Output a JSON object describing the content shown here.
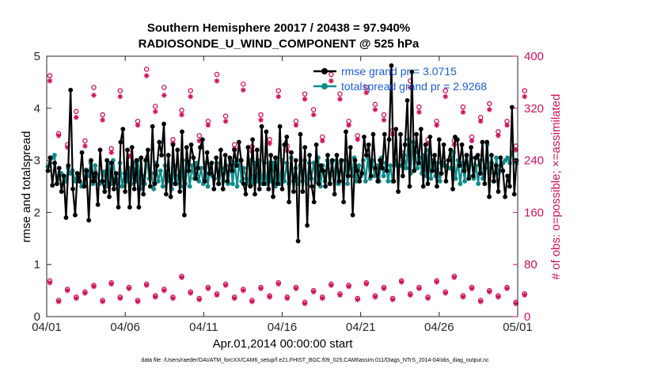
{
  "chart_data": {
    "type": "line",
    "title": "Southern Hemisphere 20017 / 20438 = 97.940%",
    "subtitle": "RADIOSONDE_U_WIND_COMPONENT @ 525 hPa",
    "xlabel": "Apr.01,2014 00:00:00 start",
    "ylabel": "rmse and totalspread",
    "ylabel_right": "# of obs: o=possible; ×=assimilated",
    "footnote": "data file: /Users/raeder/DAI/ATM_forcXX/CAM6_setup/f.e21.FHIST_BGC.f09_025.CAM6assim.011/Diags_NTrS_2014-04/obs_diag_output.nc",
    "xlim": [
      0,
      30
    ],
    "ylim": [
      0,
      5
    ],
    "ylim_right": [
      0,
      400
    ],
    "x_ticks": [
      0,
      5,
      10,
      15,
      20,
      25,
      30
    ],
    "x_tick_labels": [
      "04/01",
      "04/06",
      "04/11",
      "04/16",
      "04/21",
      "04/26",
      "05/01"
    ],
    "y_ticks": [
      "0",
      "1",
      "2",
      "3",
      "4",
      "5"
    ],
    "y_ticks_right": [
      "0",
      "80",
      "160",
      "240",
      "320",
      "400"
    ],
    "legend": [
      {
        "label": "rmse grand pr = 3.0715",
        "color": "#000000"
      },
      {
        "label": "totalspread grand pr = 2.9268",
        "color": "#0f8a8a"
      }
    ],
    "series": [
      {
        "name": "rmse",
        "color": "#000000",
        "values": [
          2.8,
          3.05,
          2.52,
          2.95,
          2.55,
          2.85,
          2.4,
          2.7,
          1.9,
          2.9,
          4.35,
          2.45,
          1.95,
          2.75,
          2.6,
          3.15,
          2.5,
          2.8,
          1.85,
          3.0,
          2.6,
          2.75,
          2.15,
          3.2,
          2.6,
          2.4,
          3.0,
          2.3,
          2.95,
          2.45,
          2.75,
          2.1,
          3.35,
          3.6,
          2.4,
          3.2,
          2.1,
          3.25,
          2.45,
          3.0,
          2.1,
          3.05,
          2.35,
          3.0,
          3.2,
          2.5,
          3.65,
          2.55,
          2.9,
          3.35,
          3.1,
          3.7,
          2.35,
          3.1,
          2.3,
          3.3,
          2.55,
          3.2,
          2.4,
          3.55,
          1.95,
          3.25,
          2.8,
          3.3,
          3.05,
          2.65,
          2.85,
          3.25,
          3.4,
          2.6,
          3.15,
          2.75,
          2.95,
          2.45,
          3.05,
          2.55,
          3.2,
          2.45,
          3.1,
          2.6,
          3.05,
          2.8,
          3.2,
          2.9,
          3.35,
          3.0,
          2.55,
          2.35,
          3.25,
          2.5,
          3.4,
          2.35,
          3.2,
          2.45,
          3.65,
          2.55,
          3.55,
          2.45,
          3.1,
          2.3,
          3.05,
          2.55,
          3.65,
          2.45,
          3.3,
          3.45,
          2.2,
          3.15,
          2.4,
          3.0,
          1.45,
          3.5,
          2.4,
          3.25,
          1.75,
          3.1,
          2.5,
          2.2,
          3.3,
          2.55,
          2.9,
          2.8,
          2.5,
          3.1,
          2.55,
          3.0,
          2.35,
          3.1,
          2.6,
          3.0,
          2.2,
          3.55,
          2.7,
          3.25,
          1.95,
          3.0,
          2.8,
          2.6,
          2.75,
          3.45,
          3.1,
          3.3,
          2.7,
          3.5,
          2.85,
          2.6,
          3.0,
          2.85,
          3.5,
          2.8,
          3.4,
          4.82,
          2.6,
          3.6,
          2.4,
          3.5,
          2.7,
          3.3,
          4.15,
          2.5,
          4.7,
          2.8,
          3.5,
          2.95,
          3.6,
          2.5,
          3.3,
          2.55,
          3.45,
          2.8,
          3.1,
          2.5,
          3.4,
          2.75,
          3.3,
          2.6,
          3.0,
          3.2,
          2.45,
          3.45,
          3.4,
          2.9,
          3.3,
          2.8,
          3.1,
          2.65,
          3.25,
          2.7,
          3.05,
          3.1,
          2.75,
          3.35,
          2.55,
          3.35,
          2.3,
          3.1,
          2.6,
          2.9,
          2.4,
          3.05,
          2.8,
          2.3,
          2.7,
          2.5,
          4.02,
          2.35,
          3.0
        ]
      },
      {
        "name": "totalspread",
        "color": "#0f8a8a",
        "values": [
          2.88,
          2.95,
          3.05,
          3.1,
          2.55,
          2.65,
          2.75,
          2.7,
          2.6,
          2.85,
          2.75,
          2.8,
          2.6,
          2.75,
          2.6,
          2.5,
          2.55,
          2.82,
          2.7,
          2.95,
          2.55,
          2.9,
          2.7,
          2.55,
          2.6,
          2.78,
          2.5,
          2.95,
          2.55,
          3.0,
          2.65,
          2.55,
          2.95,
          2.5,
          2.75,
          2.6,
          2.85,
          2.55,
          2.95,
          2.6,
          3.0,
          2.45,
          2.7,
          2.55,
          3.05,
          2.65,
          2.75,
          2.45,
          2.95,
          2.6,
          2.8,
          2.5,
          2.9,
          2.6,
          2.7,
          2.45,
          2.9,
          2.55,
          2.7,
          2.5,
          3.0,
          2.55,
          2.95,
          2.5,
          2.9,
          2.65,
          2.95,
          2.6,
          2.85,
          2.55,
          2.95,
          2.5,
          2.9,
          2.7,
          2.65,
          2.95,
          2.55,
          2.85,
          2.6,
          2.9,
          2.55,
          3.0,
          2.55,
          2.95,
          2.5,
          3.0,
          2.6,
          2.85,
          2.65,
          2.55,
          3.0,
          2.55,
          2.95,
          2.6,
          3.0,
          2.55,
          2.95,
          2.55,
          2.95,
          2.6,
          2.95,
          2.5,
          3.05,
          2.55,
          3.0,
          2.6,
          2.95,
          2.55,
          3.05,
          2.6,
          2.85,
          2.55,
          2.9,
          2.6,
          3.0,
          2.55,
          2.95,
          2.65,
          2.95,
          2.6,
          3.05,
          2.5,
          2.9,
          2.6,
          3.0,
          2.55,
          2.95,
          2.7,
          3.0,
          2.55,
          2.95,
          2.6,
          3.0,
          2.55,
          2.95,
          2.7,
          3.05,
          2.6,
          2.9,
          2.7,
          3.0,
          2.6,
          3.05,
          2.65,
          3.0,
          2.7,
          2.9,
          2.6,
          3.05,
          2.7,
          2.95,
          2.6,
          2.9,
          2.6,
          3.0,
          2.9,
          2.9,
          2.9,
          3.1,
          2.85,
          3.4,
          2.75,
          3.35,
          3.15,
          2.85,
          3.05,
          2.75,
          3.1,
          2.7,
          3.2,
          2.65,
          3.0,
          2.7,
          2.95,
          2.6,
          2.95,
          2.9,
          2.9,
          2.85,
          2.85,
          3.15,
          2.65,
          3.0,
          2.55,
          2.95,
          2.6,
          3.1,
          2.7,
          3.05,
          2.65,
          2.9,
          2.55,
          3.0,
          2.65,
          2.85,
          3.3,
          2.75,
          2.95,
          2.6,
          3.05,
          2.75,
          2.9,
          2.95,
          3.0,
          3.05,
          2.95,
          3.15,
          3.0,
          2.95
        ]
      },
      {
        "name": "obs_possible_00Z",
        "color": "#d0105a",
        "values": [
          370,
          281,
          264,
          315,
          270,
          352,
          310,
          258,
          347,
          252,
          300,
          380,
          323,
          352,
          272,
          317,
          347,
          278,
          300,
          372,
          308,
          264,
          357,
          261,
          310,
          272,
          347,
          262,
          300,
          342,
          318,
          276,
          372,
          342,
          300,
          278,
          352,
          326,
          310,
          286,
          252,
          362,
          322,
          272,
          300,
          347,
          270,
          322,
          276,
          306,
          327,
          284,
          300,
          262,
          347
        ]
      },
      {
        "name": "obs_assimilated_00Z",
        "color": "#d0105a",
        "values": [
          362,
          278,
          260,
          306,
          262,
          340,
          302,
          252,
          338,
          246,
          294,
          370,
          315,
          340,
          266,
          310,
          338,
          270,
          294,
          362,
          300,
          258,
          348,
          254,
          302,
          266,
          338,
          255,
          294,
          334,
          310,
          270,
          362,
          334,
          294,
          272,
          344,
          318,
          302,
          280,
          246,
          352,
          314,
          266,
          294,
          338,
          264,
          314,
          270,
          300,
          318,
          278,
          294,
          256,
          338
        ]
      },
      {
        "name": "obs_possible_12Z",
        "color": "#d0105a",
        "values": [
          55,
          25,
          42,
          30,
          38,
          48,
          25,
          52,
          30,
          45,
          25,
          50,
          32,
          42,
          30,
          62,
          38,
          28,
          45,
          35,
          50,
          30,
          42,
          25,
          45,
          32,
          52,
          30,
          45,
          22,
          40,
          30,
          50,
          35,
          48,
          28,
          52,
          32,
          45,
          28,
          55,
          35,
          45,
          30,
          55,
          38,
          62,
          32,
          45,
          25,
          40,
          32,
          45,
          22,
          35
        ]
      },
      {
        "name": "obs_assimilated_12Z",
        "color": "#d0105a",
        "values": [
          52,
          23,
          40,
          28,
          36,
          46,
          23,
          50,
          28,
          43,
          23,
          48,
          30,
          40,
          28,
          60,
          36,
          26,
          43,
          33,
          48,
          28,
          40,
          23,
          43,
          30,
          50,
          28,
          43,
          20,
          38,
          28,
          48,
          33,
          46,
          26,
          50,
          30,
          43,
          26,
          53,
          33,
          43,
          28,
          53,
          36,
          60,
          30,
          43,
          23,
          38,
          30,
          43,
          20,
          33
        ]
      }
    ],
    "obs_x_start": 0.2,
    "obs_x_step": 0.56
  }
}
